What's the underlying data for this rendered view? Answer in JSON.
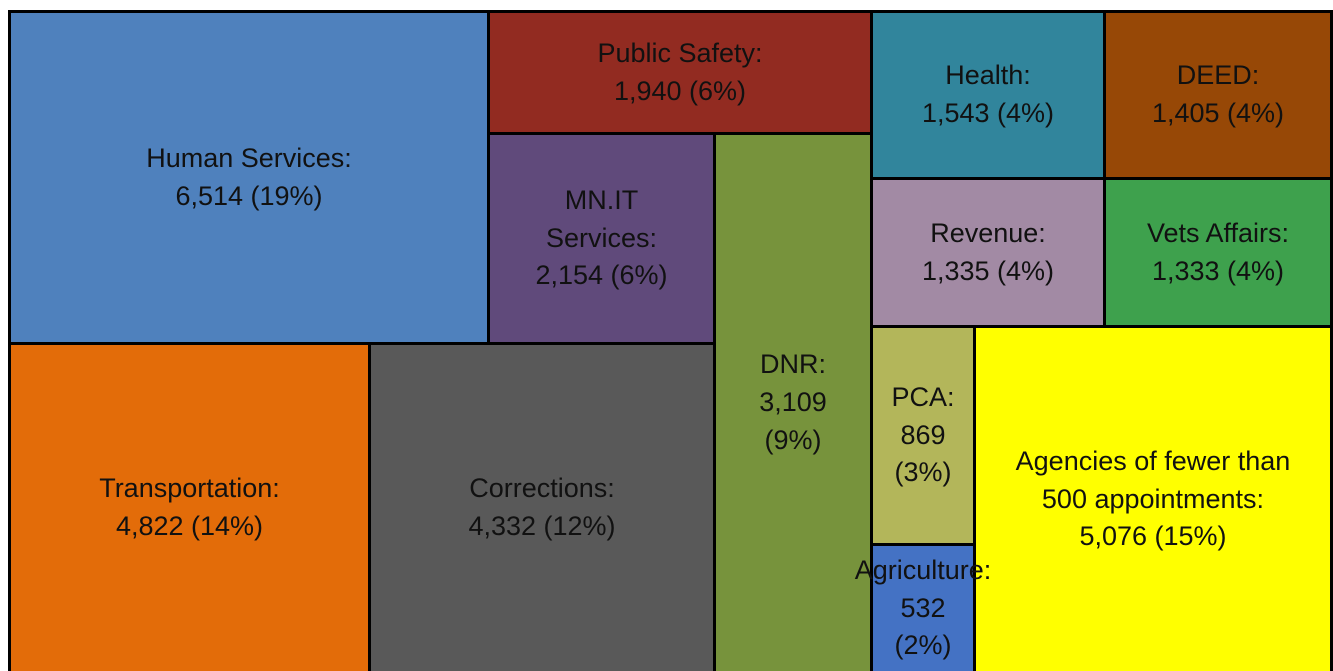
{
  "chart_data": {
    "type": "treemap",
    "categories": [
      "Human Services:",
      "Public Safety:",
      "MN.IT Services:",
      "DNR:",
      "Health:",
      "DEED:",
      "Revenue:",
      "Vets Affairs:",
      "PCA:",
      "Agriculture:",
      "Agencies of fewer than 500 appointments:",
      "Transportation:",
      "Corrections:"
    ],
    "values": [
      6514,
      1940,
      2154,
      3109,
      1543,
      1405,
      1335,
      1333,
      869,
      532,
      5076,
      4822,
      4332
    ],
    "value_labels": [
      "6,514 (19%)",
      "1,940 (6%)",
      "2,154 (6%)",
      "3,109 (9%)",
      "1,543 (4%)",
      "1,405 (4%)",
      "1,335 (4%)",
      "1,333 (4%)",
      "869 (3%)",
      "532 (2%)",
      "5,076 (15%)",
      "4,822 (14%)",
      "4,332 (12%)"
    ],
    "colors": [
      "#4f81bd",
      "#922b21",
      "#604a7b",
      "#77933c",
      "#31859c",
      "#974806",
      "#a28aa4",
      "#3ea14d",
      "#b3b65a",
      "#4472c4",
      "#ffff00",
      "#e36c09",
      "#595959"
    ]
  }
}
